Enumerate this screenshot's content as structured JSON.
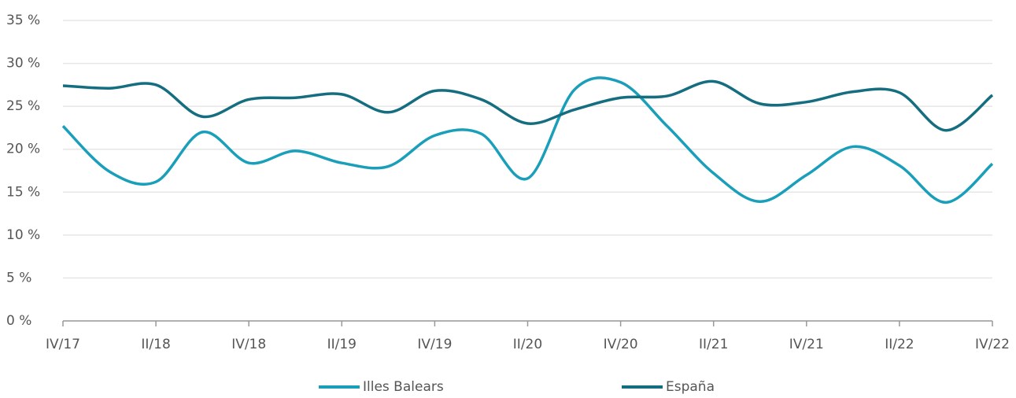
{
  "chart_data": {
    "type": "line",
    "categories": [
      "IV/17",
      null,
      "II/18",
      null,
      "IV/18",
      null,
      "II/19",
      null,
      "IV/19",
      null,
      "II/20",
      null,
      "IV/20",
      null,
      "II/21",
      null,
      "IV/21",
      null,
      "II/22",
      null,
      "IV/22"
    ],
    "series": [
      {
        "name": "Illes Balears",
        "color": "#1a9fba",
        "values": [
          22.7,
          17.4,
          16.2,
          22.0,
          18.4,
          19.8,
          18.4,
          18.0,
          21.6,
          21.8,
          16.6,
          26.9,
          27.8,
          22.7,
          17.2,
          13.9,
          17.0,
          20.3,
          18.1,
          13.8,
          18.3
        ]
      },
      {
        "name": "España",
        "color": "#156e80",
        "values": [
          27.4,
          27.1,
          27.5,
          23.8,
          25.8,
          26.0,
          26.4,
          24.3,
          26.8,
          25.8,
          23.0,
          24.6,
          26.0,
          26.2,
          27.9,
          25.3,
          25.5,
          26.7,
          26.6,
          22.2,
          26.3
        ]
      }
    ],
    "ylim": [
      0,
      35
    ],
    "yticks": [
      {
        "value": 0,
        "label": "0 %"
      },
      {
        "value": 5,
        "label": "5 %"
      },
      {
        "value": 10,
        "label": "10 %"
      },
      {
        "value": 15,
        "label": "15 %"
      },
      {
        "value": 20,
        "label": "20 %"
      },
      {
        "value": 25,
        "label": "25 %"
      },
      {
        "value": 30,
        "label": "30 %"
      },
      {
        "value": 35,
        "label": "35 %"
      }
    ],
    "grid": true
  }
}
